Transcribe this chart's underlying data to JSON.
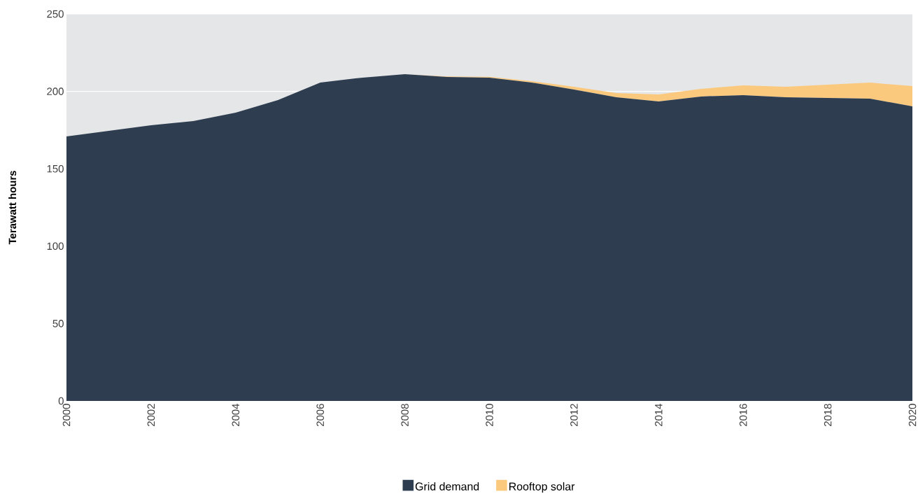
{
  "chart_data": {
    "type": "area",
    "stacked": true,
    "ylabel": "Terawatt hours",
    "x": [
      2000,
      2001,
      2002,
      2003,
      2004,
      2005,
      2006,
      2007,
      2008,
      2009,
      2010,
      2011,
      2012,
      2013,
      2014,
      2015,
      2016,
      2017,
      2018,
      2019,
      2020
    ],
    "series": [
      {
        "name": "Grid demand",
        "color": "#2e3e50",
        "values": [
          170.9,
          174.5,
          178.1,
          180.8,
          186.3,
          194.4,
          205.7,
          208.9,
          211.1,
          209.3,
          208.9,
          205.7,
          201.2,
          196.2,
          193.5,
          196.7,
          197.6,
          196.2,
          195.8,
          195.3,
          190.3
        ]
      },
      {
        "name": "Rooftop solar",
        "color": "#fbc97d",
        "values": [
          0,
          0,
          0,
          0,
          0,
          0,
          0,
          0,
          0,
          0.3,
          0.5,
          0.9,
          1.8,
          2.7,
          4.5,
          4.9,
          6.3,
          6.8,
          8.5,
          10.4,
          13.1
        ]
      }
    ],
    "xlim": [
      2000,
      2020
    ],
    "xticks": [
      2000,
      2002,
      2004,
      2006,
      2008,
      2010,
      2012,
      2014,
      2016,
      2018,
      2020
    ],
    "ylim": [
      0,
      250
    ],
    "yticks": [
      0,
      50,
      100,
      150,
      200,
      250
    ],
    "grid": "y",
    "legend": "bottom"
  }
}
